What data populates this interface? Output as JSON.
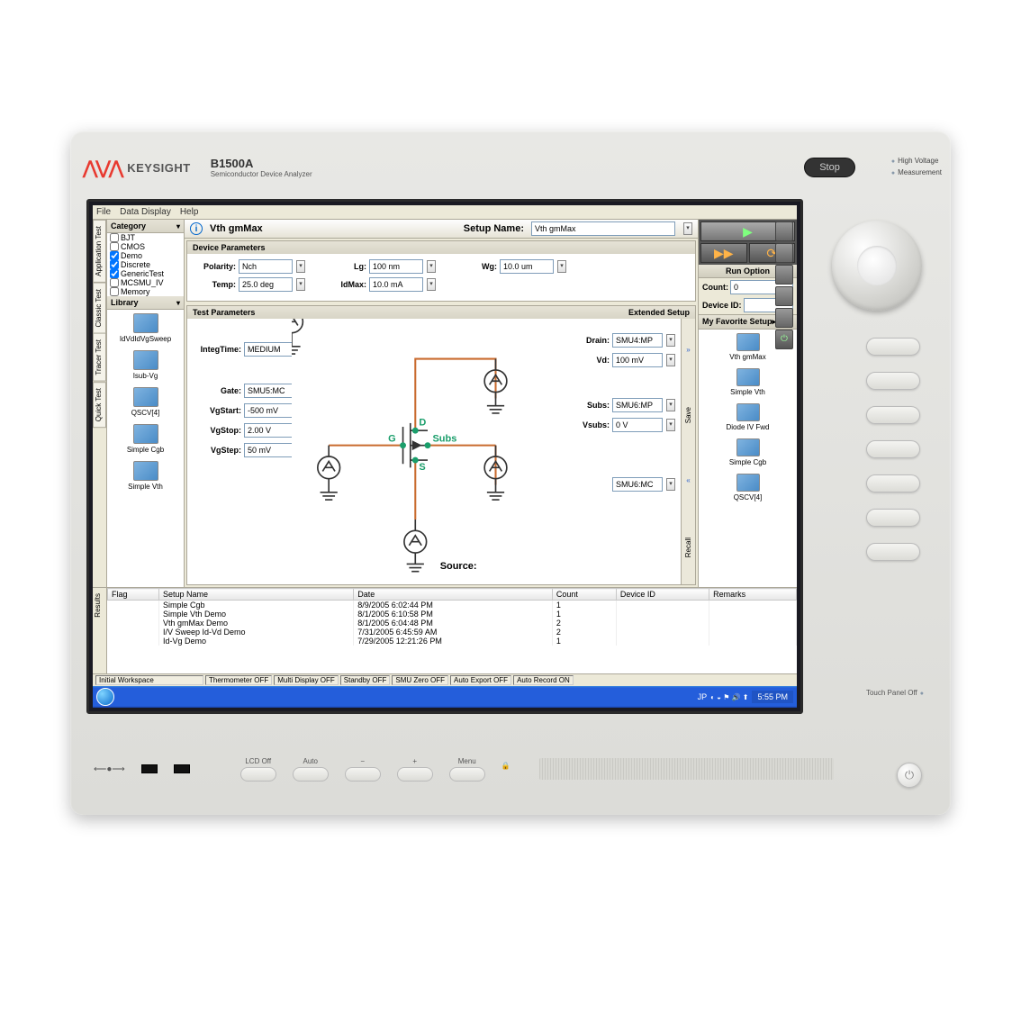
{
  "brand": {
    "logo_glyph": "⋀⋁⋀",
    "name": "KEYSIGHT",
    "model": "B1500A",
    "subtitle": "Semiconductor Device Analyzer"
  },
  "bezel": {
    "stop": "Stop",
    "hv1": "High Voltage",
    "hv2": "Measurement",
    "touch_panel": "Touch Panel Off"
  },
  "menubar": [
    "File",
    "Data Display",
    "Help"
  ],
  "vtabs": [
    "Application Test",
    "Classic Test",
    "Tracer Test",
    "Quick Test"
  ],
  "sidebar": {
    "category_label": "Category",
    "categories": [
      {
        "label": "BJT",
        "checked": false
      },
      {
        "label": "CMOS",
        "checked": false
      },
      {
        "label": "Demo",
        "checked": true
      },
      {
        "label": "Discrete",
        "checked": true
      },
      {
        "label": "GenericTest",
        "checked": true
      },
      {
        "label": "MCSMU_IV",
        "checked": false
      },
      {
        "label": "Memory",
        "checked": false
      }
    ],
    "library_label": "Library",
    "library": [
      "IdVdIdVgSweep",
      "Isub-Vg",
      "QSCV[4]",
      "Simple Cgb",
      "Simple Vth"
    ]
  },
  "title": {
    "icon": "i",
    "name": "Vth gmMax",
    "setup_label": "Setup Name:",
    "setup_value": "Vth gmMax"
  },
  "device_params": {
    "header": "Device Parameters",
    "polarity": {
      "label": "Polarity:",
      "value": "Nch"
    },
    "lg": {
      "label": "Lg:",
      "value": "100 nm"
    },
    "wg": {
      "label": "Wg:",
      "value": "10.0 um"
    },
    "temp": {
      "label": "Temp:",
      "value": "25.0 deg"
    },
    "idmax": {
      "label": "IdMax:",
      "value": "10.0 mA"
    }
  },
  "test_params": {
    "header": "Test Parameters",
    "ext_setup": "Extended Setup",
    "integ": {
      "label": "IntegTime:",
      "value": "MEDIUM"
    },
    "gate": {
      "label": "Gate:",
      "value": "SMU5:MC"
    },
    "vgstart": {
      "label": "VgStart:",
      "value": "-500 mV"
    },
    "vgstop": {
      "label": "VgStop:",
      "value": "2.00 V"
    },
    "vgstep": {
      "label": "VgStep:",
      "value": "50 mV"
    },
    "drain": {
      "label": "Drain:",
      "value": "SMU4:MP"
    },
    "vd": {
      "label": "Vd:",
      "value": "100 mV"
    },
    "subs": {
      "label": "Subs:",
      "value": "SMU6:MP"
    },
    "vsubs": {
      "label": "Vsubs:",
      "value": "0 V"
    },
    "source": {
      "label": "Source:",
      "value": "SMU6:MC"
    },
    "terminals": {
      "d": "D",
      "g": "G",
      "s": "S",
      "subs": "Subs"
    }
  },
  "save_recall": {
    "save": "Save",
    "recall": "Recall",
    "expand": "»",
    "collapse": "«"
  },
  "run": {
    "option": "Run Option",
    "count_label": "Count:",
    "count_value": "0",
    "device_label": "Device ID:",
    "device_value": "",
    "fav_label": "My Favorite Setup▸",
    "favorites": [
      "Vth gmMax",
      "Simple Vth",
      "Diode IV Fwd",
      "Simple Cgb",
      "QSCV[4]"
    ]
  },
  "results": {
    "tab": "Results",
    "columns": [
      "Flag",
      "Setup Name",
      "Date",
      "Count",
      "Device ID",
      "Remarks"
    ],
    "rows": [
      [
        "",
        "Simple Cgb",
        "8/9/2005 6:02:44 PM",
        "1",
        "",
        ""
      ],
      [
        "",
        "Simple Vth Demo",
        "8/1/2005 6:10:58 PM",
        "1",
        "",
        ""
      ],
      [
        "",
        "Vth gmMax Demo",
        "8/1/2005 6:04:48 PM",
        "2",
        "",
        ""
      ],
      [
        "",
        "I/V Sweep Id-Vd Demo",
        "7/31/2005 6:45:59 AM",
        "2",
        "",
        ""
      ],
      [
        "",
        "Id-Vg Demo",
        "7/29/2005 12:21:26 PM",
        "1",
        "",
        ""
      ]
    ]
  },
  "status": {
    "workspace": "Initial Workspace",
    "items": [
      "Thermometer OFF",
      "Multi Display OFF",
      "Standby OFF",
      "SMU Zero OFF",
      "Auto Export OFF",
      "Auto Record ON"
    ]
  },
  "taskbar": {
    "lang": "JP",
    "time": "5:55 PM"
  },
  "bottom": {
    "usb": "⟵●⟶",
    "buttons": [
      "LCD Off",
      "Auto",
      "−",
      "+",
      "Menu"
    ],
    "lock_icon": "🔒"
  },
  "colors": {
    "wire": "#c96b2e",
    "node": "#1a9e6b"
  }
}
